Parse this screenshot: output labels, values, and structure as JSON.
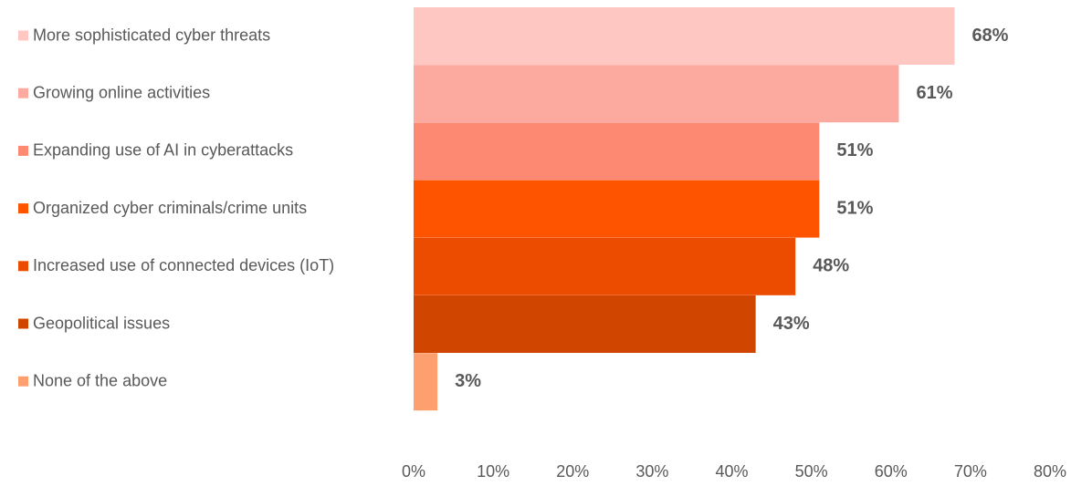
{
  "chart_data": {
    "type": "bar",
    "orientation": "horizontal",
    "title": "",
    "xlabel": "",
    "ylabel": "",
    "categories": [
      "More sophisticated cyber threats",
      "Growing online activities",
      "Expanding use of AI in cyberattacks",
      "Organized cyber criminals/crime units",
      "Increased use of connected devices (IoT)",
      "Geopolitical issues",
      "None of the above"
    ],
    "values": [
      68,
      61,
      51,
      51,
      48,
      43,
      3
    ],
    "value_labels": [
      "68%",
      "61%",
      "51%",
      "51%",
      "48%",
      "43%",
      "3%"
    ],
    "colors": [
      "#FEC7C1",
      "#FCAAA0",
      "#FD8973",
      "#FE5400",
      "#EC4C00",
      "#D04500",
      "#FD9F6F"
    ],
    "xlim": [
      0,
      80
    ],
    "x_ticks": [
      0,
      10,
      20,
      30,
      40,
      50,
      60,
      70,
      80
    ],
    "x_tick_labels": [
      "0%",
      "10%",
      "20%",
      "30%",
      "40%",
      "50%",
      "60%",
      "70%",
      "80%"
    ],
    "grid": false,
    "legend": "left"
  }
}
